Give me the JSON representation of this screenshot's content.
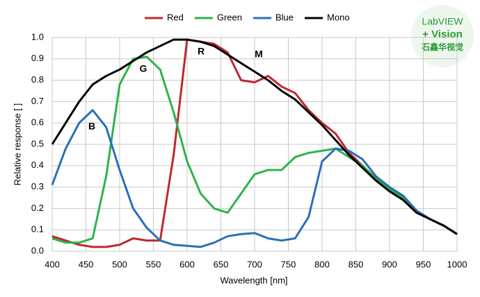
{
  "chart_data": {
    "type": "line",
    "xlabel": "Wavelength [nm]",
    "ylabel": "Relative response [ ]",
    "x": [
      400,
      420,
      440,
      460,
      480,
      500,
      520,
      540,
      560,
      580,
      600,
      620,
      640,
      660,
      680,
      700,
      720,
      740,
      760,
      780,
      800,
      820,
      840,
      860,
      880,
      900,
      920,
      940,
      960,
      980,
      1000
    ],
    "series": [
      {
        "name": "Red",
        "color": "#c0282d",
        "values": [
          0.07,
          0.05,
          0.03,
          0.02,
          0.02,
          0.03,
          0.06,
          0.05,
          0.05,
          0.45,
          0.99,
          0.98,
          0.97,
          0.93,
          0.8,
          0.79,
          0.82,
          0.77,
          0.74,
          0.66,
          0.6,
          0.55,
          0.46,
          0.4,
          0.34,
          0.29,
          0.25,
          0.19,
          0.15,
          0.12,
          0.08
        ]
      },
      {
        "name": "Green",
        "color": "#2db34a",
        "values": [
          0.06,
          0.04,
          0.04,
          0.06,
          0.35,
          0.78,
          0.9,
          0.91,
          0.85,
          0.65,
          0.42,
          0.27,
          0.2,
          0.18,
          0.27,
          0.36,
          0.38,
          0.38,
          0.44,
          0.46,
          0.47,
          0.48,
          0.44,
          0.4,
          0.34,
          0.29,
          0.25,
          0.19,
          0.15,
          0.12,
          0.08
        ]
      },
      {
        "name": "Blue",
        "color": "#2a6fb8",
        "values": [
          0.31,
          0.48,
          0.6,
          0.66,
          0.58,
          0.38,
          0.2,
          0.11,
          0.05,
          0.03,
          0.025,
          0.02,
          0.04,
          0.07,
          0.08,
          0.085,
          0.06,
          0.05,
          0.06,
          0.16,
          0.42,
          0.48,
          0.47,
          0.43,
          0.35,
          0.3,
          0.26,
          0.19,
          0.15,
          0.12,
          0.08
        ]
      },
      {
        "name": "Mono",
        "color": "#000000",
        "values": [
          0.5,
          0.6,
          0.7,
          0.78,
          0.82,
          0.85,
          0.89,
          0.93,
          0.96,
          0.99,
          0.99,
          0.98,
          0.96,
          0.92,
          0.88,
          0.84,
          0.8,
          0.75,
          0.71,
          0.65,
          0.59,
          0.52,
          0.45,
          0.39,
          0.33,
          0.28,
          0.24,
          0.18,
          0.15,
          0.12,
          0.08
        ]
      }
    ],
    "annotations": [
      "R",
      "G",
      "B",
      "M"
    ],
    "xlim": [
      400,
      1000
    ],
    "ylim": [
      0,
      1
    ],
    "xticks": [
      400,
      450,
      500,
      550,
      600,
      650,
      700,
      750,
      800,
      850,
      900,
      950,
      1000
    ],
    "yticks": [
      {
        "value": 0,
        "label": "0.0"
      },
      0.1,
      0.2,
      0.3,
      0.4,
      0.5,
      0.6,
      0.7,
      0.8,
      0.9,
      {
        "value": 1,
        "label": "1.0"
      }
    ],
    "grid": true
  },
  "logo": [
    "LabVIEW",
    "+ Vision",
    "石鑫华视觉"
  ]
}
